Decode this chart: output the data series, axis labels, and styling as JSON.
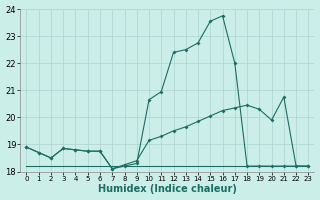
{
  "xlabel": "Humidex (Indice chaleur)",
  "ylabel": "",
  "bg_color": "#cceee8",
  "grid_color": "#aad4ce",
  "line_color": "#1a6e62",
  "xlim": [
    -0.5,
    23.5
  ],
  "ylim": [
    18,
    24
  ],
  "yticks": [
    18,
    19,
    20,
    21,
    22,
    23,
    24
  ],
  "xticks": [
    0,
    1,
    2,
    3,
    4,
    5,
    6,
    7,
    8,
    9,
    10,
    11,
    12,
    13,
    14,
    15,
    16,
    17,
    18,
    19,
    20,
    21,
    22,
    23
  ],
  "series1_x": [
    0,
    1,
    2,
    3,
    4,
    5,
    6,
    7,
    8,
    9,
    10,
    11,
    12,
    13,
    14,
    15,
    16,
    17,
    18,
    19,
    20,
    21,
    22,
    23
  ],
  "series1_y": [
    18.9,
    18.7,
    18.5,
    18.85,
    18.8,
    18.75,
    18.75,
    18.1,
    18.2,
    18.3,
    20.65,
    20.95,
    22.4,
    22.5,
    22.75,
    23.55,
    23.75,
    22.0,
    18.2,
    18.2,
    18.2,
    18.2,
    18.2,
    18.2
  ],
  "series2_x": [
    0,
    1,
    2,
    3,
    4,
    5,
    6,
    7,
    8,
    9,
    10,
    11,
    12,
    13,
    14,
    15,
    16,
    17,
    18,
    19,
    20,
    21,
    22,
    23
  ],
  "series2_y": [
    18.9,
    18.7,
    18.5,
    18.85,
    18.8,
    18.75,
    18.75,
    18.1,
    18.25,
    18.4,
    19.15,
    19.3,
    19.5,
    19.65,
    19.85,
    20.05,
    20.25,
    20.35,
    20.45,
    20.3,
    19.9,
    20.75,
    18.2,
    18.2
  ],
  "series3_x": [
    0,
    23
  ],
  "series3_y": [
    18.2,
    18.2
  ]
}
